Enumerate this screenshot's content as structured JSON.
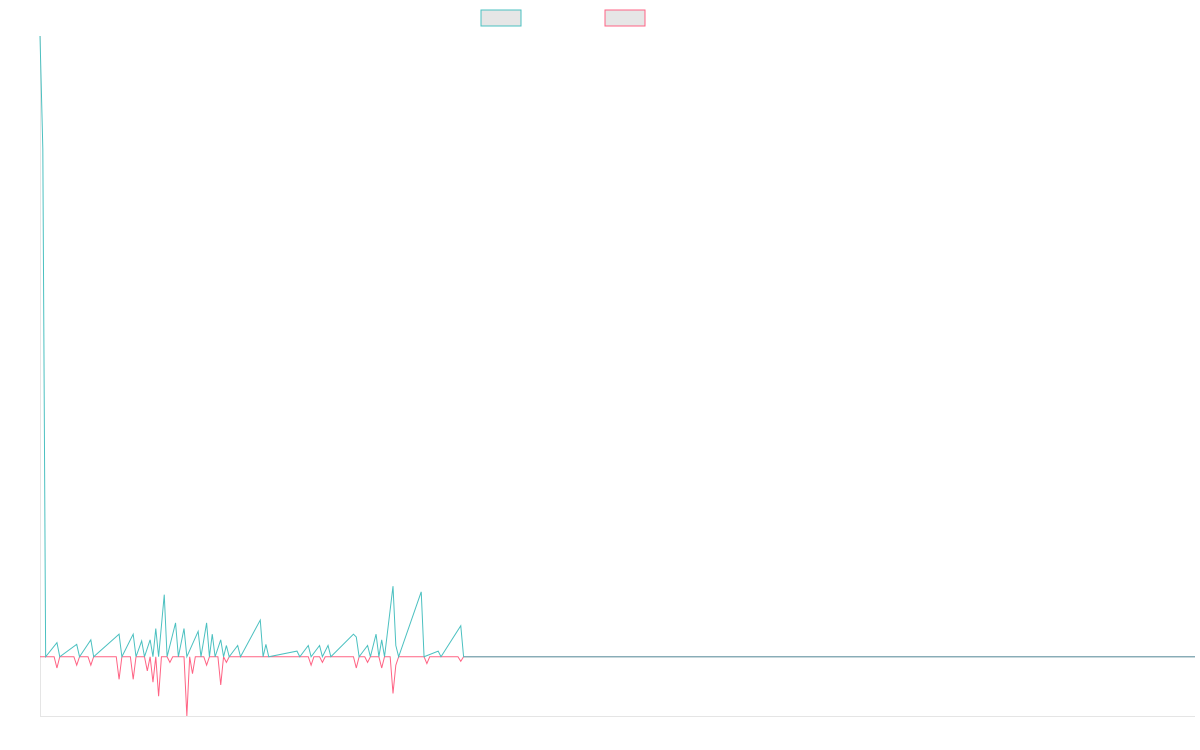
{
  "colors": {
    "positive": "#4bc0c0",
    "negative": "#ff6384",
    "swatch_fill": "#e6e6e6",
    "axis": "#e5e5e5",
    "baseline": "#7ea8b4"
  },
  "chart_data": {
    "type": "line",
    "legend_position": "top-center",
    "grid": false,
    "xlim": [
      0,
      409
    ],
    "ylim": [
      -10.5,
      110
    ],
    "series": [
      {
        "key": "positive",
        "points": [
          [
            0,
            110
          ],
          [
            1,
            90
          ],
          [
            2,
            0
          ],
          [
            6,
            2.5
          ],
          [
            7,
            0
          ],
          [
            13,
            2.2
          ],
          [
            14,
            0
          ],
          [
            18,
            3
          ],
          [
            19,
            0
          ],
          [
            28,
            4
          ],
          [
            29,
            0
          ],
          [
            33,
            4
          ],
          [
            34,
            0
          ],
          [
            36,
            2.8
          ],
          [
            37,
            0
          ],
          [
            39,
            3
          ],
          [
            40,
            0
          ],
          [
            41,
            5
          ],
          [
            42,
            0
          ],
          [
            44,
            11
          ],
          [
            45,
            0
          ],
          [
            48,
            6
          ],
          [
            49,
            0
          ],
          [
            51,
            5
          ],
          [
            52,
            0
          ],
          [
            56,
            4.5
          ],
          [
            57,
            0
          ],
          [
            59,
            6
          ],
          [
            60,
            0
          ],
          [
            61,
            4
          ],
          [
            62,
            0
          ],
          [
            64,
            3
          ],
          [
            65,
            0
          ],
          [
            66,
            2
          ],
          [
            67,
            0
          ],
          [
            70,
            2
          ],
          [
            71,
            0
          ],
          [
            78,
            6.5
          ],
          [
            79,
            0
          ],
          [
            80,
            2.2
          ],
          [
            81,
            0
          ],
          [
            91,
            1
          ],
          [
            92,
            0
          ],
          [
            95,
            2
          ],
          [
            96,
            0
          ],
          [
            99,
            2
          ],
          [
            100,
            0
          ],
          [
            102,
            2
          ],
          [
            103,
            0
          ],
          [
            111,
            4
          ],
          [
            112,
            3.5
          ],
          [
            113,
            0
          ],
          [
            116,
            2
          ],
          [
            117,
            0
          ],
          [
            119,
            4
          ],
          [
            120,
            0
          ],
          [
            121,
            3
          ],
          [
            122,
            0
          ],
          [
            125,
            12.5
          ],
          [
            126,
            2
          ],
          [
            127,
            0
          ],
          [
            135,
            11.5
          ],
          [
            136,
            0
          ],
          [
            141,
            1
          ],
          [
            142,
            0
          ],
          [
            149,
            5.5
          ],
          [
            150,
            0
          ],
          [
            409,
            0
          ]
        ]
      },
      {
        "key": "negative",
        "points": [
          [
            0,
            0
          ],
          [
            5,
            0
          ],
          [
            6,
            -2
          ],
          [
            7,
            0
          ],
          [
            12,
            0
          ],
          [
            13,
            -1.5
          ],
          [
            14,
            0
          ],
          [
            17,
            0
          ],
          [
            18,
            -1.5
          ],
          [
            19,
            0
          ],
          [
            27,
            0
          ],
          [
            28,
            -4
          ],
          [
            29,
            0
          ],
          [
            32,
            0
          ],
          [
            33,
            -4
          ],
          [
            34,
            0
          ],
          [
            37,
            0
          ],
          [
            38,
            -2.5
          ],
          [
            39,
            0
          ],
          [
            40,
            -4.5
          ],
          [
            41,
            0
          ],
          [
            42,
            -7
          ],
          [
            43,
            0
          ],
          [
            45,
            0
          ],
          [
            46,
            -1
          ],
          [
            47,
            0
          ],
          [
            51,
            0
          ],
          [
            52,
            -10.5
          ],
          [
            53,
            0
          ],
          [
            54,
            -3
          ],
          [
            55,
            0
          ],
          [
            58,
            0
          ],
          [
            59,
            -1.5
          ],
          [
            60,
            0
          ],
          [
            63,
            0
          ],
          [
            64,
            -5
          ],
          [
            65,
            0
          ],
          [
            66,
            -1
          ],
          [
            67,
            0
          ],
          [
            95,
            0
          ],
          [
            96,
            -1.5
          ],
          [
            97,
            0
          ],
          [
            99,
            0
          ],
          [
            100,
            -1
          ],
          [
            101,
            0
          ],
          [
            111,
            0
          ],
          [
            112,
            -2
          ],
          [
            113,
            0
          ],
          [
            115,
            0
          ],
          [
            116,
            -1
          ],
          [
            117,
            0
          ],
          [
            120,
            0
          ],
          [
            121,
            -2
          ],
          [
            122,
            0
          ],
          [
            124,
            0
          ],
          [
            125,
            -6.5
          ],
          [
            126,
            -1.5
          ],
          [
            127,
            0
          ],
          [
            136,
            0
          ],
          [
            137,
            -1.2
          ],
          [
            138,
            0
          ],
          [
            148,
            0
          ],
          [
            149,
            -0.8
          ],
          [
            150,
            0
          ],
          [
            409,
            0
          ]
        ]
      }
    ]
  }
}
